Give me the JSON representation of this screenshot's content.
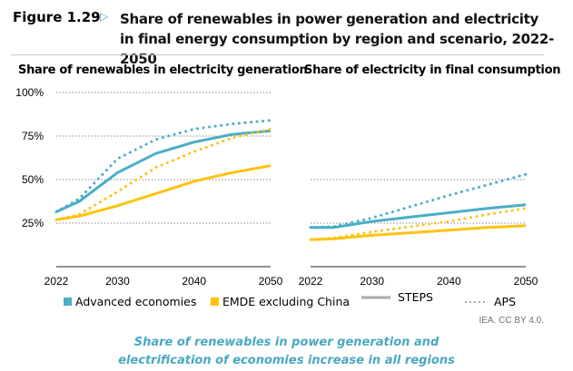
{
  "header": {
    "figure_number": "Figure 1.29",
    "arrow_icon": "triangle-right-outline",
    "title": "Share of renewables in power generation and electricity in final energy consumption by region and scenario, 2022-2050"
  },
  "legend": {
    "items": [
      {
        "label": "Advanced economies",
        "color": "#4aaec6",
        "kind": "swatch"
      },
      {
        "label": "EMDE excluding China",
        "color": "#ffc20e",
        "kind": "swatch"
      },
      {
        "label": "STEPS",
        "color": "#aaaaaa",
        "kind": "solid-line"
      },
      {
        "label": "APS",
        "color": "#aaaaaa",
        "kind": "dotted-line"
      }
    ]
  },
  "credit": "IEA. CC BY 4.0.",
  "caption": {
    "line1": "Share of renewables in power generation and",
    "line2": "electrification of economies increase in all regions"
  },
  "chart_data": [
    {
      "type": "line",
      "title": "Share of renewables in electricity generation",
      "xlabel": "",
      "ylabel": "",
      "x": [
        2022,
        2025,
        2030,
        2035,
        2040,
        2045,
        2050
      ],
      "xticks": [
        "2022",
        "2030",
        "2040",
        "2050"
      ],
      "xlim": [
        2022,
        2050
      ],
      "ylim": [
        0,
        100
      ],
      "yticks": [
        "25%",
        "50%",
        "75%",
        "100%"
      ],
      "ytick_values": [
        25,
        50,
        75,
        100
      ],
      "grid": true,
      "series": [
        {
          "name": "Advanced economies - STEPS",
          "color": "#4aaec6",
          "style": "solid",
          "values": [
            31.5,
            37.5,
            54,
            65,
            71.5,
            76,
            78
          ]
        },
        {
          "name": "Advanced economies - APS",
          "color": "#4aaec6",
          "style": "dotted",
          "values": [
            31.5,
            39,
            62,
            73,
            79,
            82,
            84
          ]
        },
        {
          "name": "EMDE excluding China - STEPS",
          "color": "#ffc20e",
          "style": "solid",
          "values": [
            27,
            29,
            35,
            42,
            49,
            54,
            58
          ]
        },
        {
          "name": "EMDE excluding China - APS",
          "color": "#ffc20e",
          "style": "dotted",
          "values": [
            27,
            30,
            43,
            57,
            66,
            74,
            79
          ]
        }
      ]
    },
    {
      "type": "line",
      "title": "Share of electricity in final consumption",
      "xlabel": "",
      "ylabel": "",
      "x": [
        2022,
        2025,
        2030,
        2035,
        2040,
        2045,
        2050
      ],
      "xticks": [
        "2022",
        "2030",
        "2040",
        "2050"
      ],
      "xlim": [
        2022,
        2050
      ],
      "ylim": [
        0,
        100
      ],
      "ytick_values": [
        25,
        50
      ],
      "grid": true,
      "series": [
        {
          "name": "Advanced economies - STEPS",
          "color": "#4aaec6",
          "style": "solid",
          "values": [
            22.5,
            22.5,
            26,
            28.5,
            31,
            33.5,
            35.5
          ]
        },
        {
          "name": "Advanced economies - APS",
          "color": "#4aaec6",
          "style": "dotted",
          "values": [
            22.5,
            23,
            28,
            34.5,
            41,
            47,
            53
          ]
        },
        {
          "name": "EMDE excluding China - STEPS",
          "color": "#ffc20e",
          "style": "solid",
          "values": [
            15.5,
            16,
            18,
            19.5,
            21,
            22.5,
            23.5
          ]
        },
        {
          "name": "EMDE excluding China - APS",
          "color": "#ffc20e",
          "style": "dotted",
          "values": [
            15.5,
            16.5,
            20,
            23,
            26,
            30,
            33.5
          ]
        }
      ]
    }
  ]
}
